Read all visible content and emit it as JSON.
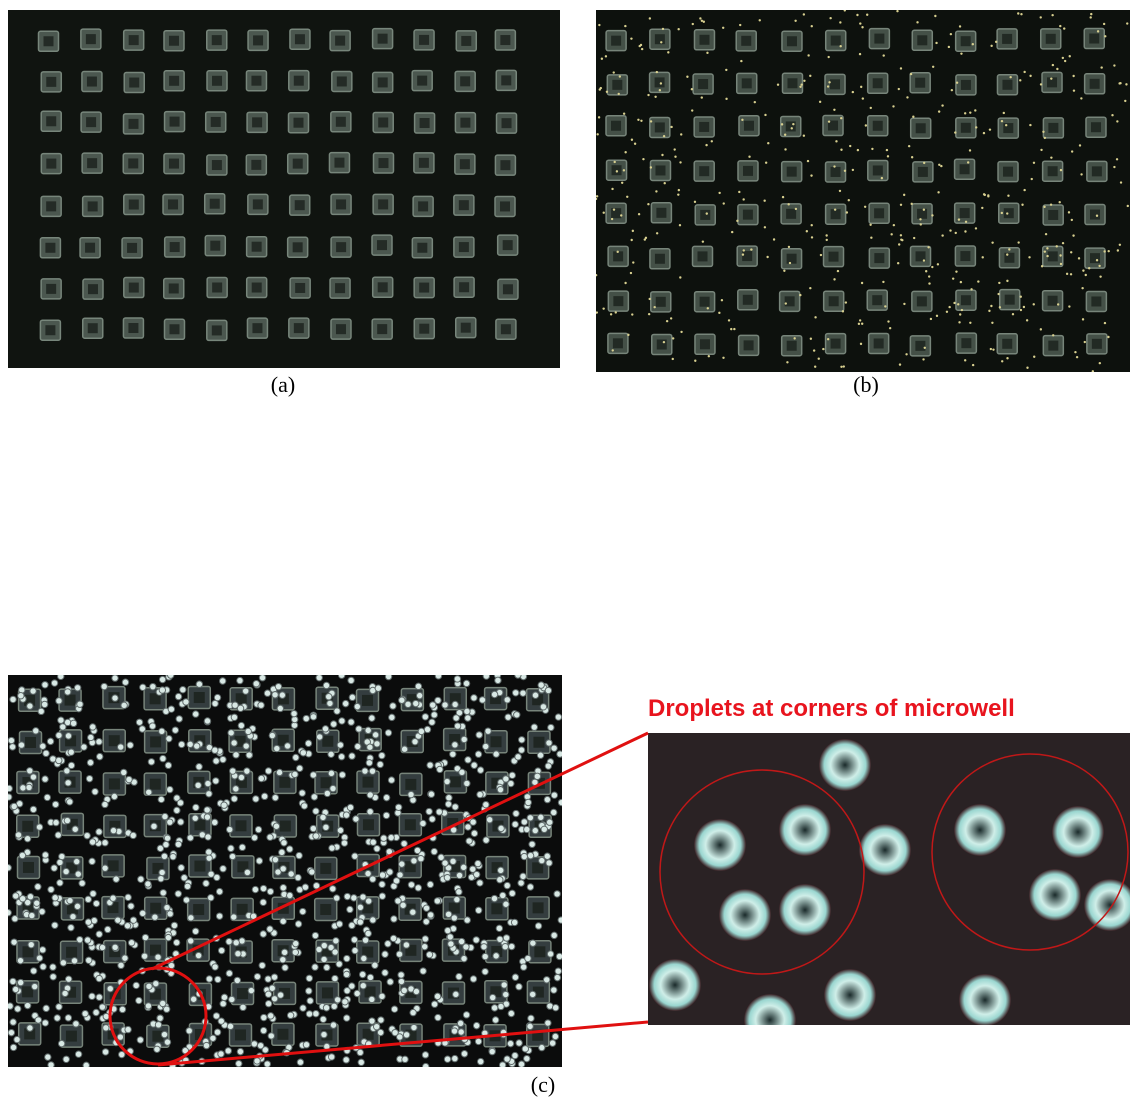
{
  "panels": [
    {
      "label": "(a)"
    },
    {
      "label": "(b)"
    },
    {
      "label": "(c)"
    }
  ],
  "annotation": "Droplets at corners of microwell"
}
